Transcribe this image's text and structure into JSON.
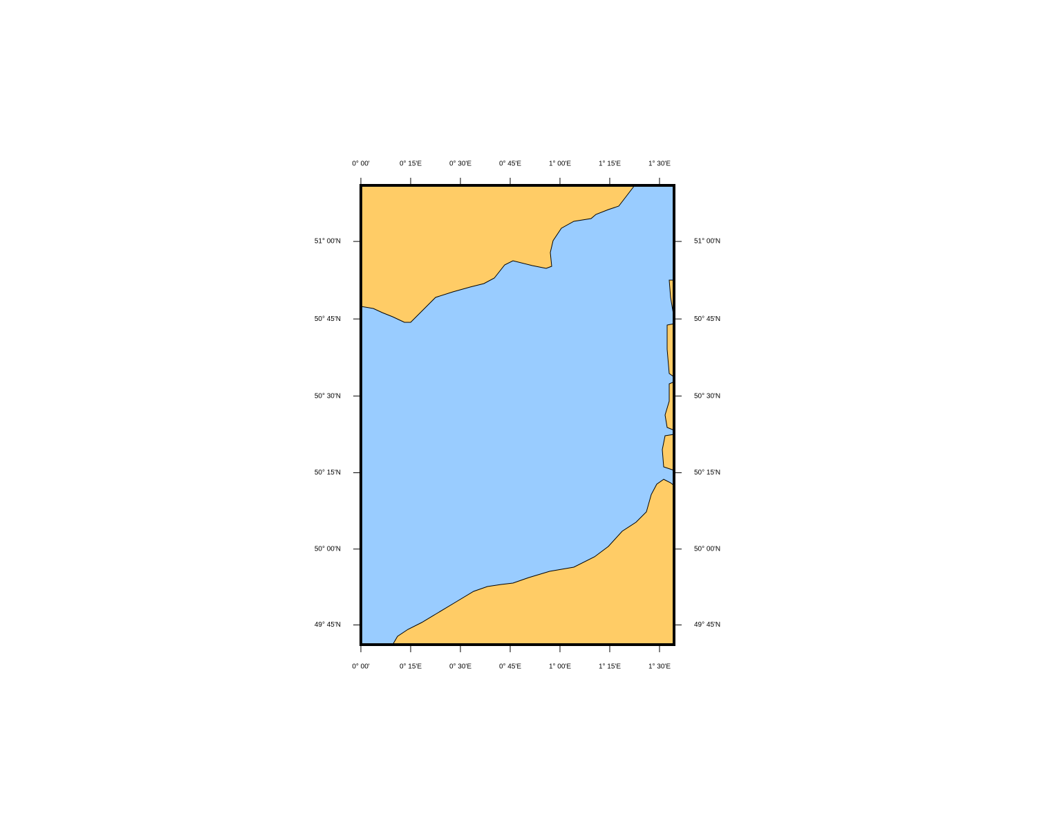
{
  "map": {
    "xlim": [
      0,
      1.573
    ],
    "ylim": [
      49.685,
      51.18
    ],
    "xticks": [
      {
        "value": 0,
        "label": "0° 00'"
      },
      {
        "value": 0.25,
        "label": "0° 15'E"
      },
      {
        "value": 0.5,
        "label": "0° 30'E"
      },
      {
        "value": 0.75,
        "label": "0° 45'E"
      },
      {
        "value": 1,
        "label": "1° 00'E"
      },
      {
        "value": 1.25,
        "label": "1° 15'E"
      },
      {
        "value": 1.5,
        "label": "1° 30'E"
      }
    ],
    "yticks": [
      {
        "value": 49.75,
        "label": "49° 45'N"
      },
      {
        "value": 50,
        "label": "50° 00'N"
      },
      {
        "value": 50.25,
        "label": "50° 15'N"
      },
      {
        "value": 50.5,
        "label": "50° 30'N"
      },
      {
        "value": 50.75,
        "label": "50° 45'N"
      },
      {
        "value": 51,
        "label": "51° 00'N"
      }
    ]
  }
}
